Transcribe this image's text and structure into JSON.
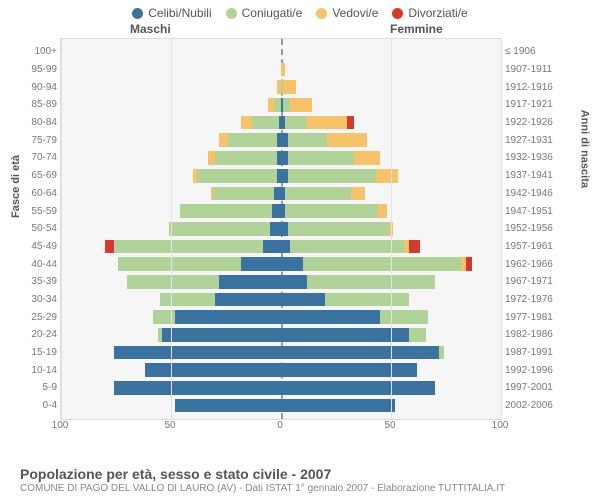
{
  "legend": [
    {
      "label": "Celibi/Nubili",
      "color": "#3b72a0"
    },
    {
      "label": "Coniugati/e",
      "color": "#b1d39a"
    },
    {
      "label": "Vedovi/e",
      "color": "#f6c36a"
    },
    {
      "label": "Divorziati/e",
      "color": "#d43a2f"
    }
  ],
  "header_male": "Maschi",
  "header_female": "Femmine",
  "ylabel_left": "Fasce di età",
  "ylabel_right": "Anni di nascita",
  "title": "Popolazione per età, sesso e stato civile - 2007",
  "subtitle": "COMUNE DI PAGO DEL VALLO DI LAURO (AV) - Dati ISTAT 1° gennaio 2007 - Elaborazione TUTTITALIA.IT",
  "xmax": 100,
  "xticks": [
    100,
    50,
    0,
    50,
    100
  ],
  "colors": {
    "c": "#3b72a0",
    "m": "#b1d39a",
    "w": "#f6c36a",
    "d": "#d43a2f"
  },
  "bg": "#f5f6f5",
  "rows": [
    {
      "age": "100+",
      "birth": "≤ 1906",
      "m": {
        "c": 0,
        "m": 0,
        "w": 0,
        "d": 0
      },
      "f": {
        "c": 0,
        "m": 0,
        "w": 0,
        "d": 0
      }
    },
    {
      "age": "95-99",
      "birth": "1907-1911",
      "m": {
        "c": 0,
        "m": 0,
        "w": 0,
        "d": 0
      },
      "f": {
        "c": 0,
        "m": 0,
        "w": 2,
        "d": 0
      }
    },
    {
      "age": "90-94",
      "birth": "1912-1916",
      "m": {
        "c": 0,
        "m": 0,
        "w": 2,
        "d": 0
      },
      "f": {
        "c": 0,
        "m": 1,
        "w": 6,
        "d": 0
      }
    },
    {
      "age": "85-89",
      "birth": "1917-1921",
      "m": {
        "c": 0,
        "m": 3,
        "w": 3,
        "d": 0
      },
      "f": {
        "c": 1,
        "m": 3,
        "w": 10,
        "d": 0
      }
    },
    {
      "age": "80-84",
      "birth": "1922-1926",
      "m": {
        "c": 1,
        "m": 12,
        "w": 5,
        "d": 0
      },
      "f": {
        "c": 2,
        "m": 10,
        "w": 18,
        "d": 3
      }
    },
    {
      "age": "75-79",
      "birth": "1927-1931",
      "m": {
        "c": 2,
        "m": 22,
        "w": 4,
        "d": 0
      },
      "f": {
        "c": 3,
        "m": 18,
        "w": 18,
        "d": 0
      }
    },
    {
      "age": "70-74",
      "birth": "1932-1936",
      "m": {
        "c": 2,
        "m": 28,
        "w": 3,
        "d": 0
      },
      "f": {
        "c": 3,
        "m": 30,
        "w": 12,
        "d": 0
      }
    },
    {
      "age": "65-69",
      "birth": "1937-1941",
      "m": {
        "c": 2,
        "m": 36,
        "w": 2,
        "d": 0
      },
      "f": {
        "c": 3,
        "m": 40,
        "w": 10,
        "d": 0
      }
    },
    {
      "age": "60-64",
      "birth": "1942-1946",
      "m": {
        "c": 3,
        "m": 28,
        "w": 1,
        "d": 0
      },
      "f": {
        "c": 2,
        "m": 30,
        "w": 6,
        "d": 0
      }
    },
    {
      "age": "55-59",
      "birth": "1947-1951",
      "m": {
        "c": 4,
        "m": 42,
        "w": 0,
        "d": 0
      },
      "f": {
        "c": 2,
        "m": 42,
        "w": 4,
        "d": 0
      }
    },
    {
      "age": "50-54",
      "birth": "1952-1956",
      "m": {
        "c": 5,
        "m": 46,
        "w": 0,
        "d": 0
      },
      "f": {
        "c": 3,
        "m": 46,
        "w": 2,
        "d": 0
      }
    },
    {
      "age": "45-49",
      "birth": "1957-1961",
      "m": {
        "c": 8,
        "m": 68,
        "w": 0,
        "d": 4
      },
      "f": {
        "c": 4,
        "m": 52,
        "w": 2,
        "d": 5
      }
    },
    {
      "age": "40-44",
      "birth": "1962-1966",
      "m": {
        "c": 18,
        "m": 56,
        "w": 0,
        "d": 0
      },
      "f": {
        "c": 10,
        "m": 72,
        "w": 2,
        "d": 3
      }
    },
    {
      "age": "35-39",
      "birth": "1967-1971",
      "m": {
        "c": 28,
        "m": 42,
        "w": 0,
        "d": 0
      },
      "f": {
        "c": 12,
        "m": 58,
        "w": 0,
        "d": 0
      }
    },
    {
      "age": "30-34",
      "birth": "1972-1976",
      "m": {
        "c": 30,
        "m": 25,
        "w": 0,
        "d": 0
      },
      "f": {
        "c": 20,
        "m": 38,
        "w": 0,
        "d": 0
      }
    },
    {
      "age": "25-29",
      "birth": "1977-1981",
      "m": {
        "c": 48,
        "m": 10,
        "w": 0,
        "d": 0
      },
      "f": {
        "c": 45,
        "m": 22,
        "w": 0,
        "d": 0
      }
    },
    {
      "age": "20-24",
      "birth": "1982-1986",
      "m": {
        "c": 54,
        "m": 2,
        "w": 0,
        "d": 0
      },
      "f": {
        "c": 58,
        "m": 8,
        "w": 0,
        "d": 0
      }
    },
    {
      "age": "15-19",
      "birth": "1987-1991",
      "m": {
        "c": 76,
        "m": 0,
        "w": 0,
        "d": 0
      },
      "f": {
        "c": 72,
        "m": 2,
        "w": 0,
        "d": 0
      }
    },
    {
      "age": "10-14",
      "birth": "1992-1996",
      "m": {
        "c": 62,
        "m": 0,
        "w": 0,
        "d": 0
      },
      "f": {
        "c": 62,
        "m": 0,
        "w": 0,
        "d": 0
      }
    },
    {
      "age": "5-9",
      "birth": "1997-2001",
      "m": {
        "c": 76,
        "m": 0,
        "w": 0,
        "d": 0
      },
      "f": {
        "c": 70,
        "m": 0,
        "w": 0,
        "d": 0
      }
    },
    {
      "age": "0-4",
      "birth": "2002-2006",
      "m": {
        "c": 48,
        "m": 0,
        "w": 0,
        "d": 0
      },
      "f": {
        "c": 52,
        "m": 0,
        "w": 0,
        "d": 0
      }
    }
  ]
}
